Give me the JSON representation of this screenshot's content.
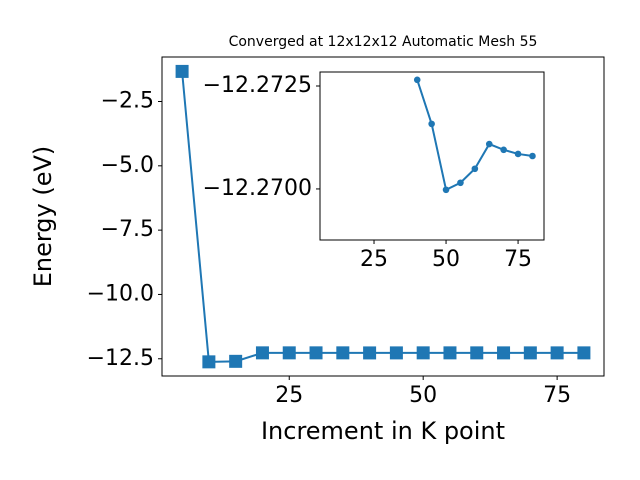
{
  "chart_data": [
    {
      "type": "line",
      "title": "Converged at 12x12x12 Automatic Mesh 55",
      "x_label": "Increment in K point",
      "y_label": "Energy (eV)",
      "x": [
        5,
        10,
        15,
        20,
        25,
        30,
        35,
        40,
        45,
        50,
        55,
        60,
        65,
        70,
        75,
        80
      ],
      "series": [
        {
          "color": "#1f77b4",
          "marker": "square",
          "values": [
            -1.33,
            -12.62,
            -12.6,
            -12.27,
            -12.27,
            -12.27,
            -12.27,
            -12.2727,
            -12.2716,
            -12.27,
            -12.2702,
            -12.2705,
            -12.2711,
            -12.271,
            -12.2709,
            -12.2708
          ]
        }
      ],
      "xlim": [
        1.25,
        83.75
      ],
      "ylim": [
        -13.17,
        -0.77
      ],
      "xticks": [
        25,
        50,
        75
      ],
      "yticks": [
        {
          "value": -2.5,
          "label": "−2.5"
        },
        {
          "value": -5.0,
          "label": "−5.0"
        },
        {
          "value": -7.5,
          "label": "−7.5"
        },
        {
          "value": -10.0,
          "label": "−10.0"
        },
        {
          "value": -12.5,
          "label": "−12.5"
        }
      ]
    },
    {
      "type": "line",
      "x": [
        40,
        45,
        50,
        55,
        60,
        65,
        70,
        75,
        80
      ],
      "series": [
        {
          "color": "#1f77b4",
          "marker": "circle",
          "values": [
            -12.27265,
            -12.27158,
            -12.26998,
            -12.27015,
            -12.27049,
            -12.27109,
            -12.27095,
            -12.27085,
            -12.2708
          ]
        }
      ],
      "xlim": [
        6.25,
        84
      ],
      "ylim": [
        -12.26876,
        -12.27284
      ],
      "xticks": [
        25,
        50,
        75
      ],
      "yticks": [
        {
          "value": -12.2725,
          "label": "−12.2725"
        },
        {
          "value": -12.27,
          "label": "−12.2700"
        }
      ]
    }
  ]
}
